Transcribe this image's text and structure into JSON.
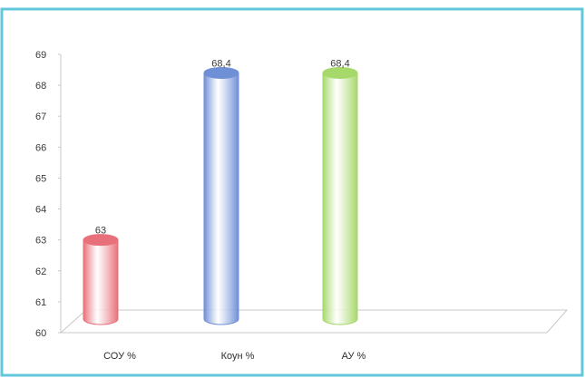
{
  "chart_data": {
    "type": "bar",
    "title": "",
    "xlabel": "",
    "ylabel": "",
    "categories": [
      "СОУ %",
      "Коун %",
      "АУ %"
    ],
    "values": [
      63,
      68.4,
      68.4
    ],
    "data_labels": [
      "63",
      "68,4",
      "68,4"
    ],
    "ylim": [
      60,
      69
    ],
    "yticks": [
      "60",
      "61",
      "62",
      "63",
      "64",
      "65",
      "66",
      "67",
      "68",
      "69"
    ],
    "grid": false,
    "legend": "none",
    "style": "3d-cylinder",
    "colors": [
      "#e8707a",
      "#6f8fd6",
      "#a6d86a"
    ],
    "frame_color": "#63c7dc"
  }
}
